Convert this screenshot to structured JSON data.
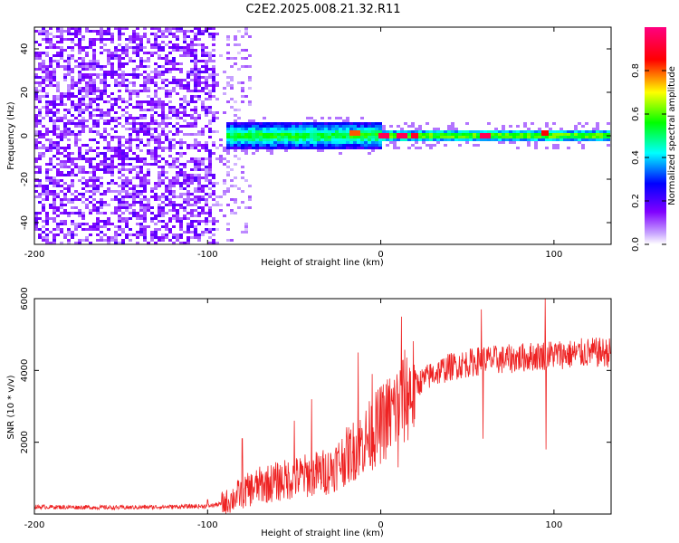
{
  "title": "C2E2.2025.008.21.32.R11",
  "chart_data": [
    {
      "type": "heatmap",
      "xlabel": "Height of straight line (km)",
      "ylabel": "Frequency (Hz)",
      "xlim": [
        -200,
        133
      ],
      "ylim": [
        -50,
        50
      ],
      "xticks": [
        -200,
        -100,
        0,
        100
      ],
      "yticks": [
        -40,
        -20,
        0,
        20,
        40
      ],
      "colorbar": {
        "label": "Normalized spectral amplitude",
        "range": [
          0,
          1
        ],
        "ticks": [
          "0.0",
          "0.2",
          "0.4",
          "0.6",
          "0.8"
        ],
        "colormap": [
          "#ffffff",
          "#8000ff",
          "#0000ff",
          "#00ffff",
          "#00ff00",
          "#ffff00",
          "#ff0000",
          "#ff0080"
        ]
      },
      "regions": [
        {
          "x_from": -200,
          "x_to": -95,
          "description": "noise scatter across all frequencies",
          "level": 0.15
        },
        {
          "x_from": -90,
          "x_to": 0,
          "center_hz": 0,
          "halfwidth_hz": 6,
          "level": 0.35
        },
        {
          "x_from": 0,
          "x_to": 133,
          "center_hz": 0,
          "halfwidth_hz": 3,
          "level": 0.45
        }
      ],
      "peaks": [
        {
          "x": 2,
          "y": 0,
          "level": 0.95
        },
        {
          "x": 12,
          "y": 0,
          "level": 0.95
        },
        {
          "x": 20,
          "y": 0,
          "level": 0.9
        },
        {
          "x": 60,
          "y": 0,
          "level": 0.95
        },
        {
          "x": 95,
          "y": 1,
          "level": 0.85
        },
        {
          "x": -15,
          "y": 1,
          "level": 0.8
        }
      ]
    },
    {
      "type": "line",
      "xlabel": "Height of straight line (km)",
      "ylabel": "SNR (10 * v/v)",
      "xlim": [
        -200,
        133
      ],
      "ylim": [
        0,
        6000
      ],
      "xticks": [
        -200,
        -100,
        0,
        100
      ],
      "yticks": [
        2000,
        4000,
        6000
      ],
      "series": [
        {
          "color": "#ee2222",
          "x": [
            -200,
            -150,
            -100,
            -90,
            -80,
            -70,
            -60,
            -50,
            -40,
            -30,
            -20,
            -10,
            0,
            10,
            20,
            30,
            40,
            50,
            60,
            70,
            80,
            90,
            100,
            110,
            120,
            133
          ],
          "y": [
            200,
            180,
            220,
            300,
            600,
            800,
            900,
            1000,
            1100,
            1200,
            1600,
            2000,
            2500,
            3000,
            3600,
            3900,
            4100,
            4200,
            4300,
            4300,
            4350,
            4400,
            4450,
            4450,
            4500,
            4500
          ]
        }
      ],
      "spikes": [
        {
          "x": -100,
          "y": 400
        },
        {
          "x": -80,
          "y": 2100
        },
        {
          "x": -50,
          "y": 2600
        },
        {
          "x": -40,
          "y": 3200
        },
        {
          "x": -13,
          "y": 4500
        },
        {
          "x": -5,
          "y": 3900
        },
        {
          "x": 10,
          "y": 1300
        },
        {
          "x": 12,
          "y": 5500
        },
        {
          "x": 58,
          "y": 5700
        },
        {
          "x": 59,
          "y": 2100
        },
        {
          "x": 95,
          "y": 6000
        },
        {
          "x": 95.5,
          "y": 1800
        }
      ]
    }
  ]
}
